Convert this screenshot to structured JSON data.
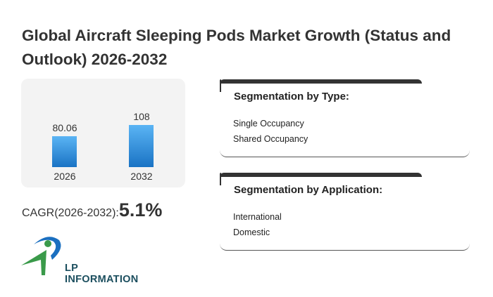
{
  "title": "Global Aircraft Sleeping Pods Market Growth (Status and Outlook) 2026-2032",
  "chart_data": {
    "type": "bar",
    "categories": [
      "2026",
      "2032"
    ],
    "values": [
      80.06,
      108
    ],
    "value_labels": [
      "80.06",
      "108"
    ],
    "title": "",
    "xlabel": "",
    "ylabel": "",
    "ylim": [
      0,
      120
    ]
  },
  "cagr": {
    "label": "CAGR(2026-2032):",
    "value": "5.1%"
  },
  "logo": {
    "text": "LP INFORMATION"
  },
  "segments": [
    {
      "title": "Segmentation by Type:",
      "items": [
        "Single Occupancy",
        "Shared Occupancy"
      ]
    },
    {
      "title": "Segmentation by Application:",
      "items": [
        "International",
        "Domestic"
      ]
    }
  ],
  "colors": {
    "bar_top": "#5ab4f4",
    "bar_bottom": "#1a73c4",
    "logo_blue": "#1a6fc0",
    "logo_green": "#3a9a4a"
  }
}
